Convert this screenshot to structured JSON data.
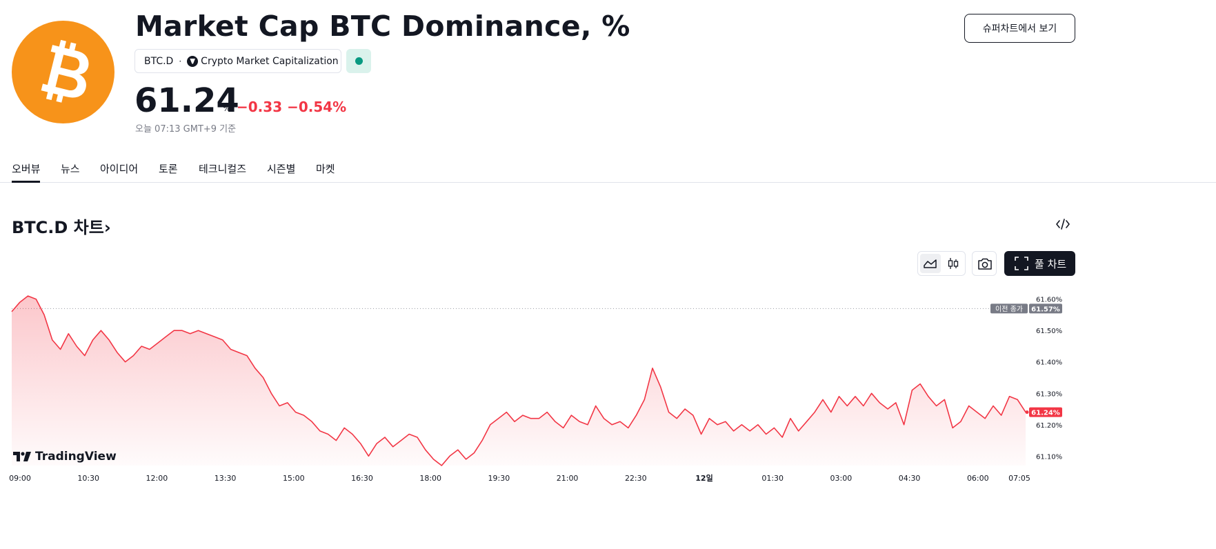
{
  "header": {
    "title": "Market Cap BTC Dominance, %",
    "symbol": "BTC.D",
    "separator": "·",
    "source": "Crypto Market Capitalization",
    "price": "61.24",
    "price_unit": "%",
    "change_abs": "−0.33",
    "change_pct": "−0.54%",
    "as_of": "오늘 07:13 GMT+9 기준",
    "supercharts_button": "슈퍼차트에서 보기",
    "status_color": "#089981"
  },
  "tabs": [
    {
      "label": "오버뷰",
      "active": true
    },
    {
      "label": "뉴스"
    },
    {
      "label": "아이디어"
    },
    {
      "label": "토론"
    },
    {
      "label": "테크니컬즈"
    },
    {
      "label": "시즌별"
    },
    {
      "label": "마켓"
    }
  ],
  "chart_section": {
    "title": "BTC.D 차트",
    "chevron": "›",
    "full_chart_button": "풀 차트",
    "watermark": "TradingView",
    "icons": [
      "embed-code-icon",
      "area-chart-icon",
      "candlestick-icon",
      "camera-icon",
      "fullscreen-icon"
    ]
  },
  "chart_data": {
    "type": "area",
    "x_ticks": [
      "09:00",
      "10:30",
      "12:00",
      "13:30",
      "15:00",
      "16:30",
      "18:00",
      "19:30",
      "21:00",
      "22:30",
      "12일",
      "01:30",
      "03:00",
      "04:30",
      "06:00",
      "07:05"
    ],
    "y_ticks": [
      "61.60%",
      "61.50%",
      "61.40%",
      "61.30%",
      "61.20%",
      "61.10%"
    ],
    "ylim": [
      61.07,
      61.63
    ],
    "prev_close": {
      "label": "이전 종가",
      "value": 61.57,
      "text": "61.57%"
    },
    "last": {
      "value": 61.24,
      "text": "61.24%"
    },
    "series": [
      {
        "name": "BTC.D",
        "color": "#f23645",
        "values": [
          61.56,
          61.59,
          61.61,
          61.6,
          61.55,
          61.47,
          61.44,
          61.49,
          61.45,
          61.42,
          61.47,
          61.5,
          61.47,
          61.43,
          61.4,
          61.42,
          61.45,
          61.44,
          61.46,
          61.48,
          61.5,
          61.5,
          61.49,
          61.5,
          61.49,
          61.48,
          61.47,
          61.44,
          61.43,
          61.42,
          61.38,
          61.35,
          61.3,
          61.26,
          61.27,
          61.24,
          61.23,
          61.21,
          61.18,
          61.17,
          61.15,
          61.19,
          61.17,
          61.14,
          61.1,
          61.14,
          61.16,
          61.13,
          61.15,
          61.17,
          61.16,
          61.12,
          61.09,
          61.07,
          61.1,
          61.12,
          61.09,
          61.11,
          61.15,
          61.2,
          61.22,
          61.24,
          61.21,
          61.23,
          61.22,
          61.22,
          61.24,
          61.21,
          61.19,
          61.23,
          61.21,
          61.2,
          61.26,
          61.22,
          61.2,
          61.21,
          61.19,
          61.23,
          61.28,
          61.38,
          61.32,
          61.24,
          61.22,
          61.25,
          61.23,
          61.17,
          61.22,
          61.2,
          61.21,
          61.18,
          61.2,
          61.18,
          61.2,
          61.17,
          61.19,
          61.16,
          61.22,
          61.18,
          61.21,
          61.24,
          61.28,
          61.24,
          61.29,
          61.26,
          61.29,
          61.26,
          61.3,
          61.27,
          61.25,
          61.27,
          61.2,
          61.31,
          61.33,
          61.29,
          61.26,
          61.28,
          61.19,
          61.21,
          61.26,
          61.24,
          61.22,
          61.26,
          61.23,
          61.29,
          61.28,
          61.24
        ]
      }
    ],
    "grid": false,
    "legend": "none"
  }
}
